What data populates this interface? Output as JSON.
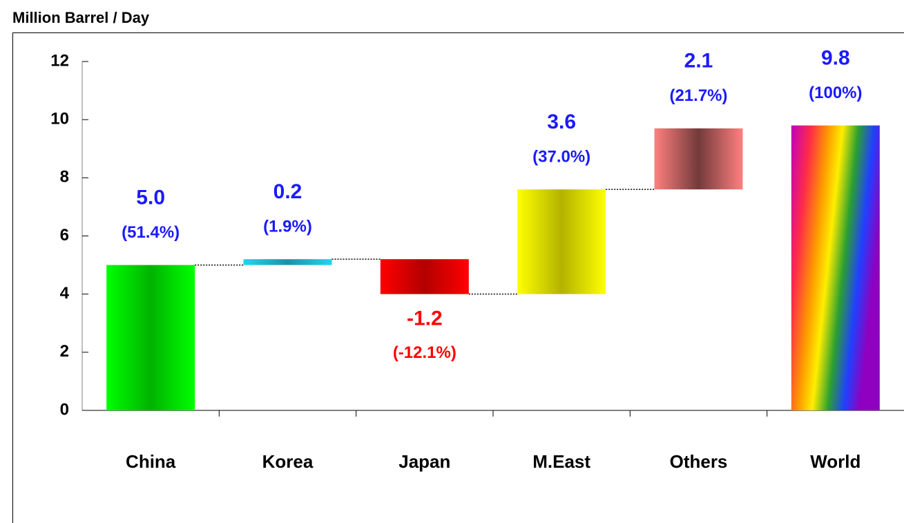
{
  "chart_data": {
    "type": "waterfall",
    "title": "Million Barrel / Day",
    "categories": [
      "China",
      "Korea",
      "Japan",
      "M.East",
      "Others",
      "World"
    ],
    "values": [
      5.0,
      0.2,
      -1.2,
      3.6,
      2.1,
      9.8
    ],
    "value_labels": [
      "5.0",
      "0.2",
      "-1.2",
      "3.6",
      "2.1",
      "9.8"
    ],
    "share_labels": [
      "(51.4%)",
      "(1.9%)",
      "(-12.1%)",
      "(37.0%)",
      "(21.7%)",
      "(100%)"
    ],
    "is_total": [
      false,
      false,
      false,
      false,
      false,
      true
    ],
    "colors": [
      "#00ff00",
      "#22d4f0",
      "#ff0000",
      "#ffff00",
      "#ff8080",
      "rainbow"
    ],
    "positive_label_color": "#1a1aff",
    "negative_label_color": "#ff0000",
    "ylim": [
      0,
      12
    ],
    "yticks": [
      0,
      2,
      4,
      6,
      8,
      10,
      12
    ]
  }
}
